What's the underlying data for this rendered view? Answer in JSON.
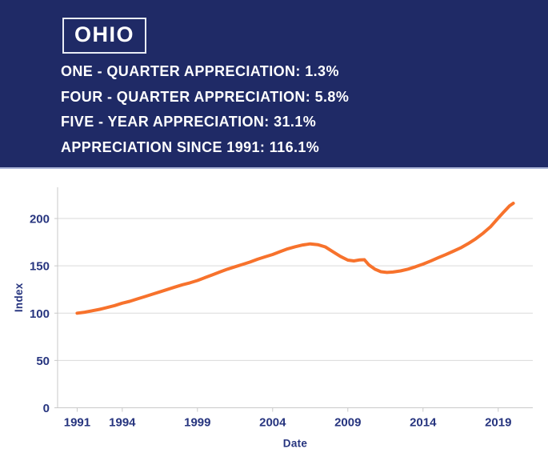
{
  "header": {
    "state_label": "OHIO",
    "stats": [
      {
        "label": "ONE - QUARTER APPRECIATION:",
        "value": "1.3%"
      },
      {
        "label": "FOUR - QUARTER APPRECIATION:",
        "value": "5.8%"
      },
      {
        "label": "FIVE - YEAR APPRECIATION:",
        "value": "31.1%"
      },
      {
        "label": "APPRECIATION SINCE 1991:",
        "value": "116.1%"
      }
    ]
  },
  "colors": {
    "header_bg": "#1f2a66",
    "header_text": "#ffffff",
    "box_border": "#e8ecf5",
    "axis_text": "#27357f",
    "grid": "#dadada",
    "axis": "#c9c9c9"
  },
  "chart_data": {
    "type": "line",
    "title": "",
    "xlabel": "Date",
    "ylabel": "Index",
    "x_ticks": [
      1991,
      1994,
      1999,
      2004,
      2009,
      2014,
      2019
    ],
    "y_ticks": [
      0,
      50,
      100,
      150,
      200
    ],
    "xlim": [
      1989.7,
      2021.3
    ],
    "ylim": [
      0,
      233
    ],
    "grid": "horizontal-only",
    "legend": "none",
    "line_color": "#f7722c",
    "line_width": 4,
    "series": [
      {
        "name": "Index",
        "points": [
          [
            1991,
            100
          ],
          [
            1991.5,
            101
          ],
          [
            1992,
            102.5
          ],
          [
            1992.5,
            104
          ],
          [
            1993,
            106
          ],
          [
            1993.5,
            108
          ],
          [
            1994,
            110.5
          ],
          [
            1994.5,
            112.5
          ],
          [
            1995,
            115
          ],
          [
            1995.5,
            117.5
          ],
          [
            1996,
            120
          ],
          [
            1996.5,
            122.5
          ],
          [
            1997,
            125
          ],
          [
            1997.5,
            127.5
          ],
          [
            1998,
            130
          ],
          [
            1998.5,
            132
          ],
          [
            1999,
            134.5
          ],
          [
            1999.5,
            137.5
          ],
          [
            2000,
            140.5
          ],
          [
            2000.5,
            143.5
          ],
          [
            2001,
            146.5
          ],
          [
            2001.5,
            149
          ],
          [
            2002,
            151.5
          ],
          [
            2002.5,
            154
          ],
          [
            2003,
            157
          ],
          [
            2003.5,
            159.5
          ],
          [
            2004,
            162
          ],
          [
            2004.5,
            165
          ],
          [
            2005,
            168
          ],
          [
            2005.5,
            170.2
          ],
          [
            2006,
            172
          ],
          [
            2006.5,
            173.2
          ],
          [
            2007,
            172.4
          ],
          [
            2007.5,
            170
          ],
          [
            2008,
            165
          ],
          [
            2008.5,
            160
          ],
          [
            2009,
            156
          ],
          [
            2009.4,
            155.2
          ],
          [
            2009.8,
            156.3
          ],
          [
            2010.1,
            156.5
          ],
          [
            2010.4,
            151
          ],
          [
            2010.8,
            146.5
          ],
          [
            2011.2,
            143.8
          ],
          [
            2011.6,
            143
          ],
          [
            2012,
            143.4
          ],
          [
            2012.5,
            144.6
          ],
          [
            2013,
            146.5
          ],
          [
            2013.5,
            149
          ],
          [
            2014,
            151.8
          ],
          [
            2014.5,
            155
          ],
          [
            2015,
            158.5
          ],
          [
            2015.5,
            161.8
          ],
          [
            2016,
            165.3
          ],
          [
            2016.5,
            169
          ],
          [
            2017,
            173.5
          ],
          [
            2017.5,
            178.5
          ],
          [
            2018,
            184.5
          ],
          [
            2018.5,
            191.5
          ],
          [
            2019,
            200.5
          ],
          [
            2019.4,
            207.5
          ],
          [
            2019.75,
            213.3
          ],
          [
            2020,
            216.1
          ]
        ]
      }
    ]
  }
}
